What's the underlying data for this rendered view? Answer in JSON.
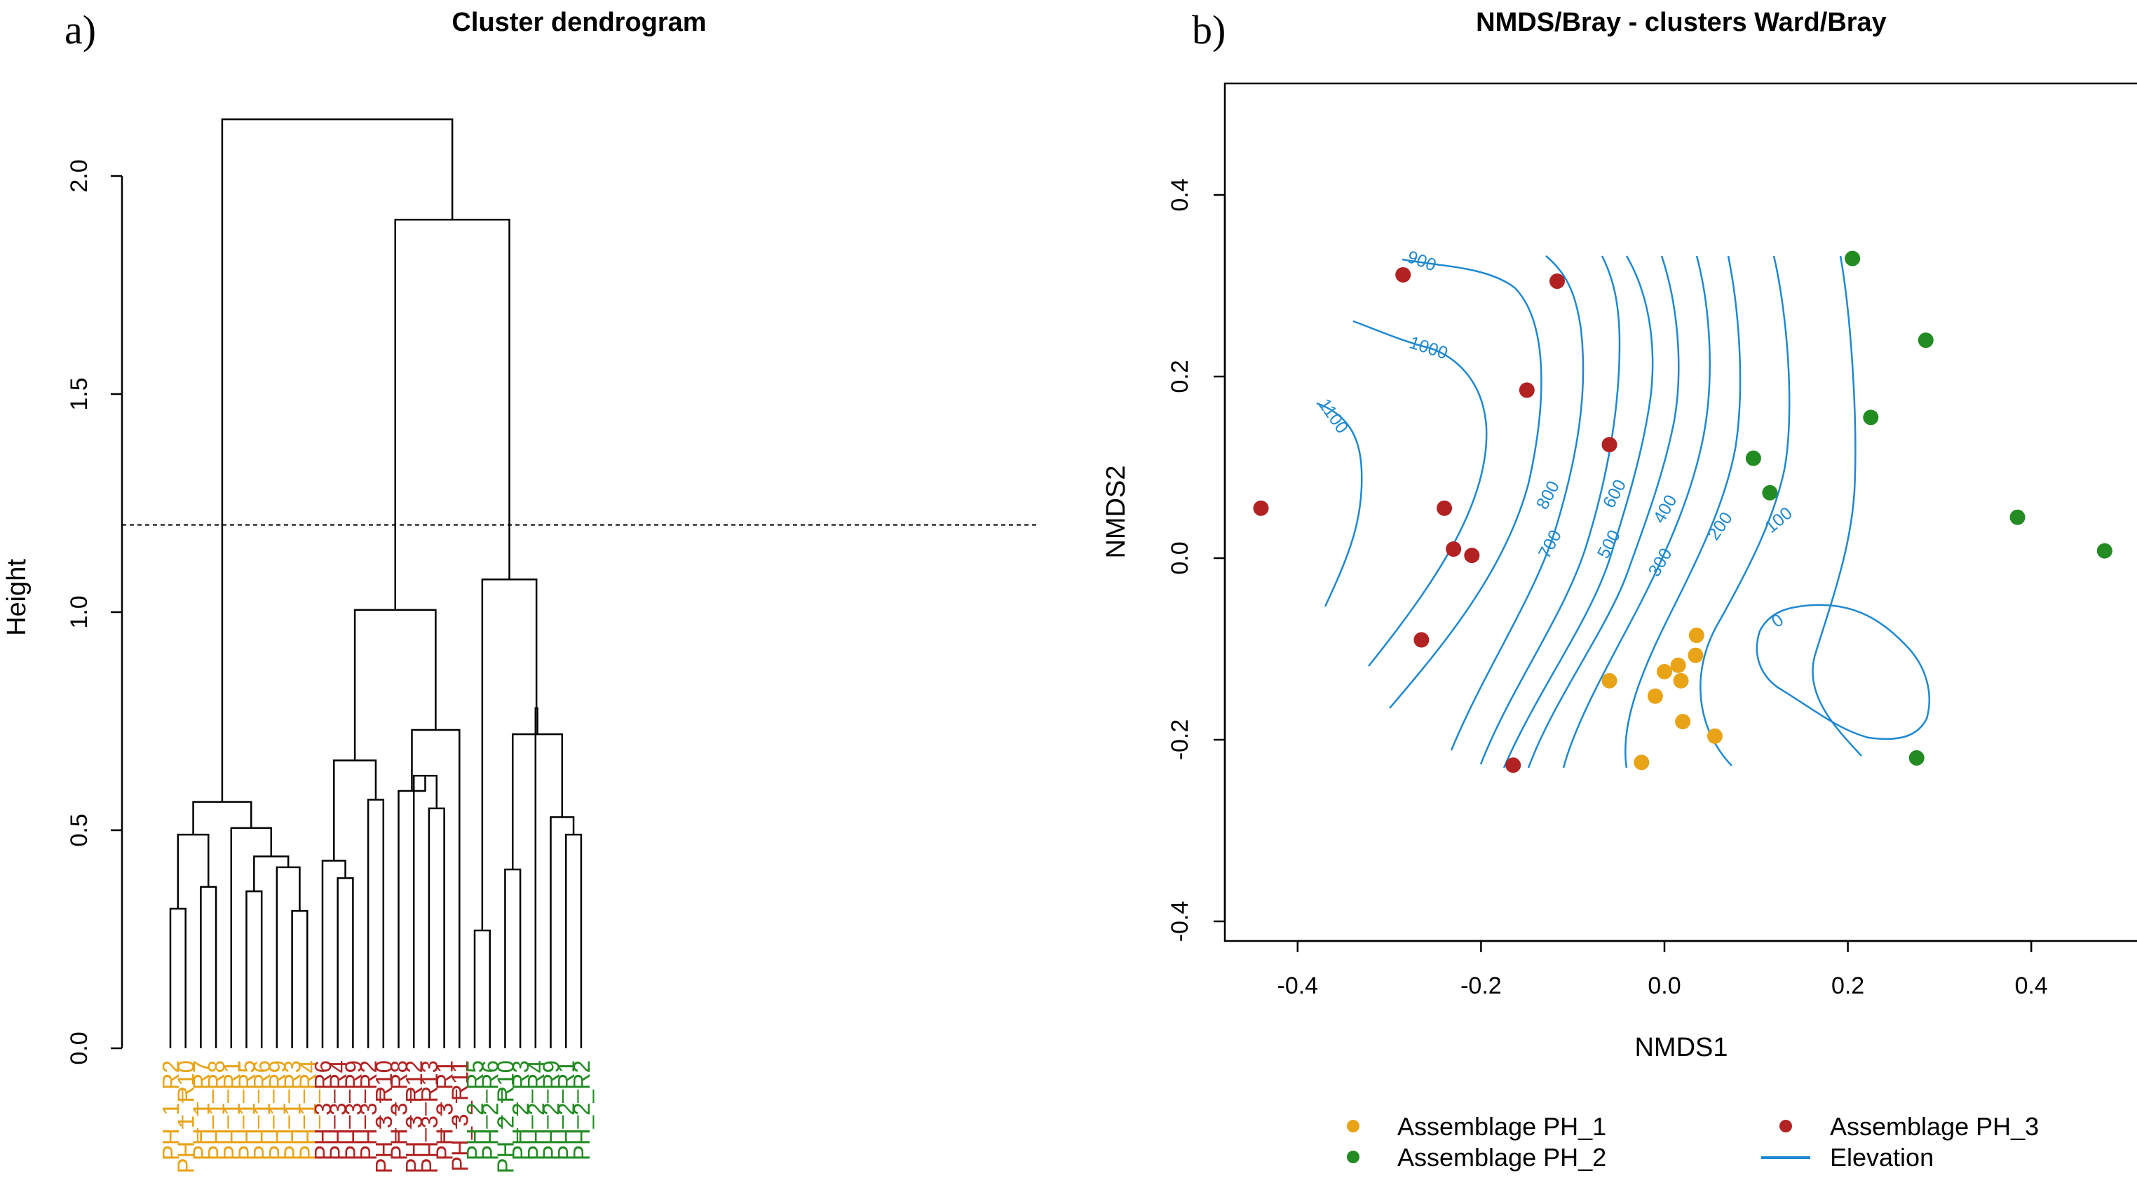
{
  "panel_a": {
    "label": "a)",
    "chart_data": {
      "type": "dendrogram",
      "title": "Cluster dendrogram",
      "ylabel": "Height",
      "ylim": [
        0,
        2.25
      ],
      "yticks": [
        0.0,
        0.5,
        1.0,
        1.5,
        2.0
      ],
      "ytick_labels": [
        "0.0",
        "0.5",
        "1.0",
        "1.5",
        "2.0"
      ],
      "cut_height": 1.2,
      "leaves": [
        {
          "label": "PH_1_R2",
          "group": "PH_1"
        },
        {
          "label": "PH_1_R10",
          "group": "PH_1"
        },
        {
          "label": "PH_1_R7",
          "group": "PH_1"
        },
        {
          "label": "PH_1_R8",
          "group": "PH_1"
        },
        {
          "label": "PH_1_R1",
          "group": "PH_1"
        },
        {
          "label": "PH_1_R5",
          "group": "PH_1"
        },
        {
          "label": "PH_1_R6",
          "group": "PH_1"
        },
        {
          "label": "PH_1_R9",
          "group": "PH_1"
        },
        {
          "label": "PH_1_R3",
          "group": "PH_1"
        },
        {
          "label": "PH_1_R4",
          "group": "PH_1"
        },
        {
          "label": "PH_3_R6",
          "group": "PH_3"
        },
        {
          "label": "PH_3_R4",
          "group": "PH_3"
        },
        {
          "label": "PH_3_R9",
          "group": "PH_3"
        },
        {
          "label": "PH_3_R2",
          "group": "PH_3"
        },
        {
          "label": "PH_3_R10",
          "group": "PH_3"
        },
        {
          "label": "PH_3_R8",
          "group": "PH_3"
        },
        {
          "label": "PH_3_R12",
          "group": "PH_3"
        },
        {
          "label": "PH_3_R13",
          "group": "PH_3"
        },
        {
          "label": "PH_3_R1",
          "group": "PH_3"
        },
        {
          "label": "PH_3_R11",
          "group": "PH_3"
        },
        {
          "label": "PH_2_R5",
          "group": "PH_2"
        },
        {
          "label": "PH_2_R6",
          "group": "PH_2"
        },
        {
          "label": "PH_2_R10",
          "group": "PH_2"
        },
        {
          "label": "PH_2_R3",
          "group": "PH_2"
        },
        {
          "label": "PH_2_R4",
          "group": "PH_2"
        },
        {
          "label": "PH_2_R9",
          "group": "PH_2"
        },
        {
          "label": "PH_2_R1",
          "group": "PH_2"
        },
        {
          "label": "PH_2_R2",
          "group": "PH_2"
        }
      ],
      "merges": [
        {
          "a": 0,
          "b": 1,
          "h": 0.32
        },
        {
          "a": 2,
          "b": 3,
          "h": 0.37
        },
        {
          "a": "m0",
          "b": "m1",
          "h": 0.49
        },
        {
          "a": 5,
          "b": 6,
          "h": 0.36
        },
        {
          "a": 8,
          "b": 9,
          "h": 0.315
        },
        {
          "a": 7,
          "b": "m4",
          "h": 0.415
        },
        {
          "a": "m3",
          "b": "m5",
          "h": 0.44
        },
        {
          "a": 4,
          "b": "m6",
          "h": 0.505
        },
        {
          "a": "m2",
          "b": "m7",
          "h": 0.565
        },
        {
          "a": 11,
          "b": 12,
          "h": 0.39
        },
        {
          "a": 10,
          "b": "m9",
          "h": 0.43
        },
        {
          "a": 13,
          "b": 14,
          "h": 0.57
        },
        {
          "a": "m10",
          "b": "m11",
          "h": 0.66
        },
        {
          "a": 17,
          "b": 18,
          "h": 0.55
        },
        {
          "a": 16,
          "b": "m13",
          "h": 0.625
        },
        {
          "a": 15,
          "b": "m14",
          "h": 0.59
        },
        {
          "a": "m15",
          "b": 19,
          "h": 0.73
        },
        {
          "a": "m12",
          "b": "m16",
          "h": 1.005
        },
        {
          "a": 20,
          "b": 21,
          "h": 0.27
        },
        {
          "a": 22,
          "b": 23,
          "h": 0.41
        },
        {
          "a": 26,
          "b": 27,
          "h": 0.49
        },
        {
          "a": 25,
          "b": "m20",
          "h": 0.53
        },
        {
          "a": "m19",
          "b": "m21",
          "h": 0.72
        },
        {
          "a": 24,
          "b": "m22",
          "h": 0.78
        },
        {
          "a": "m18",
          "b": "m23",
          "h": 1.075
        },
        {
          "a": "m17",
          "b": "m24",
          "h": 1.9
        },
        {
          "a": "m8",
          "b": "m25",
          "h": 2.13
        }
      ]
    }
  },
  "panel_b": {
    "label": "b)",
    "chart_data": {
      "type": "scatter",
      "title": "NMDS/Bray - clusters Ward/Bray",
      "xlabel": "NMDS1",
      "ylabel": "NMDS2",
      "xlim": [
        -0.5,
        0.5
      ],
      "ylim": [
        -0.42,
        0.52
      ],
      "xticks": [
        -0.4,
        -0.2,
        0.0,
        0.2,
        0.4
      ],
      "xtick_labels": [
        "-0.4",
        "-0.2",
        "0.0",
        "0.2",
        "0.4"
      ],
      "yticks": [
        -0.4,
        -0.2,
        0.0,
        0.2,
        0.4
      ],
      "ytick_labels": [
        "-0.4",
        "-0.2",
        "0.0",
        "0.2",
        "0.4"
      ],
      "series": [
        {
          "name": "Assemblage PH_1",
          "color": "#E8A317",
          "points": [
            [
              0.035,
              -0.085
            ],
            [
              0.0,
              -0.125
            ],
            [
              0.015,
              -0.118
            ],
            [
              0.018,
              -0.135
            ],
            [
              0.034,
              -0.107
            ],
            [
              -0.06,
              -0.135
            ],
            [
              -0.01,
              -0.152
            ],
            [
              0.02,
              -0.18
            ],
            [
              0.055,
              -0.196
            ],
            [
              -0.025,
              -0.225
            ]
          ]
        },
        {
          "name": "Assemblage PH_2",
          "color": "#228B22",
          "points": [
            [
              0.205,
              0.33
            ],
            [
              0.285,
              0.24
            ],
            [
              0.225,
              0.155
            ],
            [
              0.097,
              0.11
            ],
            [
              0.115,
              0.072
            ],
            [
              0.385,
              0.045
            ],
            [
              0.48,
              0.008
            ],
            [
              0.275,
              -0.22
            ]
          ]
        },
        {
          "name": "Assemblage PH_3",
          "color": "#B22222",
          "points": [
            [
              -0.285,
              0.312
            ],
            [
              -0.117,
              0.305
            ],
            [
              -0.15,
              0.185
            ],
            [
              -0.06,
              0.125
            ],
            [
              -0.44,
              0.055
            ],
            [
              -0.24,
              0.055
            ],
            [
              -0.23,
              0.01
            ],
            [
              -0.21,
              0.003
            ],
            [
              -0.265,
              -0.09
            ],
            [
              -0.165,
              -0.228
            ]
          ]
        }
      ],
      "contour": {
        "name": "Elevation",
        "color": "#1E88D2",
        "levels": [
          "1100",
          "1000",
          "900",
          "800",
          "700",
          "600",
          "500",
          "400",
          "300",
          "200",
          "100",
          "0"
        ]
      },
      "legend": [
        {
          "label": "Assemblage PH_1",
          "kind": "point",
          "color": "#E8A317"
        },
        {
          "label": "Assemblage PH_3",
          "kind": "point",
          "color": "#B22222"
        },
        {
          "label": "Assemblage PH_2",
          "kind": "point",
          "color": "#228B22"
        },
        {
          "label": "Elevation",
          "kind": "line",
          "color": "#1E88D2"
        }
      ],
      "legend_position": "bottom"
    }
  }
}
